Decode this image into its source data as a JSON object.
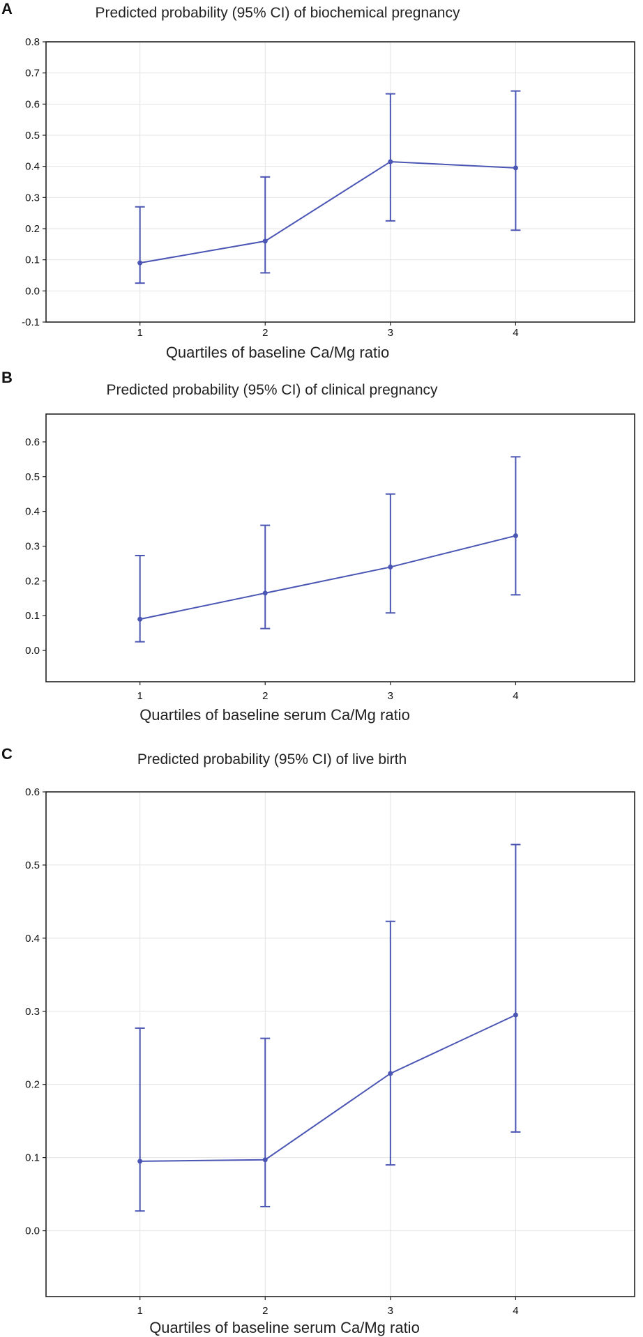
{
  "chart_data": [
    {
      "panel": "A",
      "type": "line",
      "title": "Predicted probability (95% CI) of biochemical pregnancy",
      "xlabel": "Quartiles of baseline Ca/Mg ratio",
      "ylabel": "",
      "x": [
        1,
        2,
        3,
        4
      ],
      "xlim": [
        0.25,
        4.95
      ],
      "ylim": [
        -0.1,
        0.8
      ],
      "yticks": [
        -0.1,
        0.0,
        0.1,
        0.2,
        0.3,
        0.4,
        0.5,
        0.6,
        0.7,
        0.8
      ],
      "ytick_labels": [
        "-0.1",
        "0.0",
        "0.1",
        "0.2",
        "0.3",
        "0.4",
        "0.5",
        "0.6",
        "0.7",
        "0.8"
      ],
      "grid": true,
      "series": [
        {
          "name": "Predicted probability",
          "values": [
            0.09,
            0.16,
            0.415,
            0.395
          ],
          "lower": [
            0.025,
            0.058,
            0.225,
            0.195
          ],
          "upper": [
            0.27,
            0.366,
            0.633,
            0.642
          ]
        }
      ]
    },
    {
      "panel": "B",
      "type": "line",
      "title": "Predicted probability (95% CI) of clinical pregnancy",
      "xlabel": "Quartiles of baseline serum Ca/Mg ratio",
      "ylabel": "",
      "x": [
        1,
        2,
        3,
        4
      ],
      "xlim": [
        0.25,
        4.95
      ],
      "ylim": [
        -0.09,
        0.68
      ],
      "yticks": [
        0.0,
        0.1,
        0.2,
        0.3,
        0.4,
        0.5,
        0.6
      ],
      "ytick_labels": [
        "0.0",
        "0.1",
        "0.2",
        "0.3",
        "0.4",
        "0.5",
        "0.6"
      ],
      "grid": false,
      "series": [
        {
          "name": "Predicted probability",
          "values": [
            0.09,
            0.165,
            0.24,
            0.33
          ],
          "lower": [
            0.025,
            0.063,
            0.108,
            0.16
          ],
          "upper": [
            0.273,
            0.36,
            0.45,
            0.557
          ]
        }
      ]
    },
    {
      "panel": "C",
      "type": "line",
      "title": "Predicted probability (95% CI) of live birth",
      "xlabel": "Quartiles of baseline serum Ca/Mg ratio",
      "ylabel": "",
      "x": [
        1,
        2,
        3,
        4
      ],
      "xlim": [
        0.25,
        4.95
      ],
      "ylim": [
        -0.09,
        0.6
      ],
      "yticks": [
        0.0,
        0.1,
        0.2,
        0.3,
        0.4,
        0.5,
        0.6
      ],
      "ytick_labels": [
        "0.0",
        "0.1",
        "0.2",
        "0.3",
        "0.4",
        "0.5",
        "0.6"
      ],
      "grid": true,
      "series": [
        {
          "name": "Predicted probability",
          "values": [
            0.095,
            0.097,
            0.215,
            0.295
          ],
          "lower": [
            0.027,
            0.033,
            0.09,
            0.135
          ],
          "upper": [
            0.277,
            0.263,
            0.423,
            0.528
          ]
        }
      ]
    }
  ],
  "colors": {
    "series": "#4a55b4",
    "frame": "#222222",
    "grid": "#e4e4e4"
  }
}
